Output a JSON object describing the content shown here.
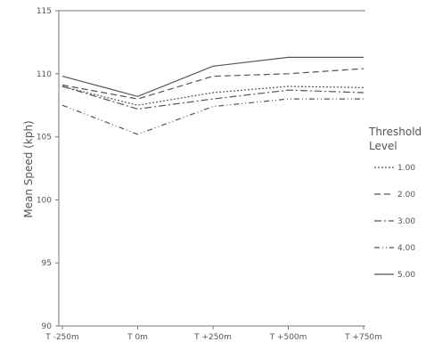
{
  "chart_data": {
    "type": "line",
    "title": "",
    "xlabel": "",
    "ylabel": "Mean Speed (kph)",
    "categories": [
      "T -250m",
      "T 0m",
      "T +250m",
      "T +500m",
      "T +750m"
    ],
    "y_ticks": [
      "90",
      "95",
      "100",
      "105",
      "110",
      "115"
    ],
    "ylim": [
      90,
      115
    ],
    "grid": false,
    "legend": {
      "title_line1": "Threshold",
      "title_line2": "Level",
      "placement": "right"
    },
    "series": [
      {
        "name": "1.00",
        "values": [
          109.0,
          107.5,
          108.5,
          109.0,
          108.9
        ],
        "dash": "2,2"
      },
      {
        "name": "2.00",
        "values": [
          109.1,
          108.0,
          109.8,
          110.0,
          110.4
        ],
        "dash": "7,4"
      },
      {
        "name": "3.00",
        "values": [
          109.0,
          107.2,
          108.0,
          108.7,
          108.5
        ],
        "dash": "8,3,2,3"
      },
      {
        "name": "4.00",
        "values": [
          107.5,
          105.2,
          107.4,
          108.0,
          108.0
        ],
        "dash": "6,3,1,3,1,3"
      },
      {
        "name": "5.00",
        "values": [
          109.8,
          108.2,
          110.6,
          111.3,
          111.3
        ],
        "dash": ""
      }
    ]
  }
}
